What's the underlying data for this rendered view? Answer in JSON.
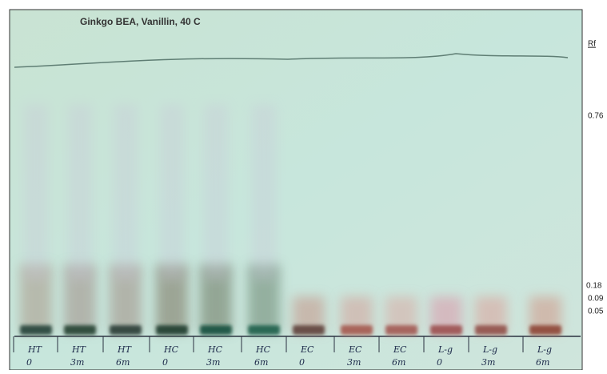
{
  "title": "Ginkgo BEA, Vanillin, 40 C",
  "rf_label": "Rf",
  "rf_markers": [
    "0.76",
    "0.18",
    "0.09",
    "0.05"
  ],
  "lanes": [
    {
      "sample": "HT",
      "time": "0"
    },
    {
      "sample": "HT",
      "time": "3m"
    },
    {
      "sample": "HT",
      "time": "6m"
    },
    {
      "sample": "HC",
      "time": "0"
    },
    {
      "sample": "HC",
      "time": "3m"
    },
    {
      "sample": "HC",
      "time": "6m"
    },
    {
      "sample": "EC",
      "time": "0"
    },
    {
      "sample": "EC",
      "time": "3m"
    },
    {
      "sample": "EC",
      "time": "6m"
    },
    {
      "sample": "L-g",
      "time": "0"
    },
    {
      "sample": "L-g",
      "time": "3m"
    },
    {
      "sample": "L-g",
      "time": "6m"
    }
  ]
}
